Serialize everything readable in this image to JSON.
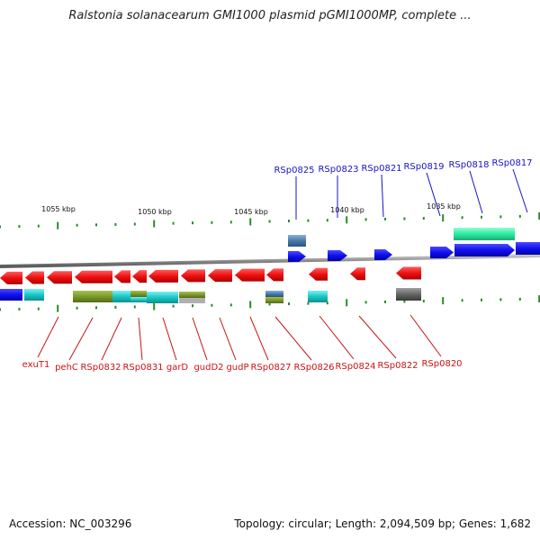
{
  "title": "Ralstonia solanacearum GMI1000 plasmid pGMI1000MP, complete ...",
  "footer": {
    "accession": "Accession: NC_003296",
    "topology": "Topology: circular; Length: 2,094,509 bp; Genes: 1,682"
  },
  "kbp_labels": [
    "1055 kbp",
    "1050 kbp",
    "1045 kbp",
    "1040 kbp",
    "1035 kbp"
  ],
  "top_gene_labels": [
    "RSp0825",
    "RSp0823",
    "RSp0821",
    "RSp0819",
    "RSp0818",
    "RSp0817"
  ],
  "bottom_gene_labels": [
    "exuT1",
    "pehC",
    "RSp0832",
    "RSp0831",
    "garD",
    "gudD2",
    "gudP",
    "RSp0827",
    "RSp0826",
    "RSp0824",
    "RSp0822",
    "RSp0820"
  ],
  "colors": {
    "forward_gene": "#1010ee",
    "reverse_gene": "#ee1010",
    "top_label": "#1515c8",
    "bottom_label": "#c81414",
    "tick": "#2a8a2a",
    "backbone": "#8a8a8a",
    "cyan_feature": "#19c6c6",
    "olive_feature": "#7a9a2a",
    "teal_feature": "#2ee8a0",
    "steel_feature": "#4a7aaa",
    "gray_feature": "#666666"
  }
}
